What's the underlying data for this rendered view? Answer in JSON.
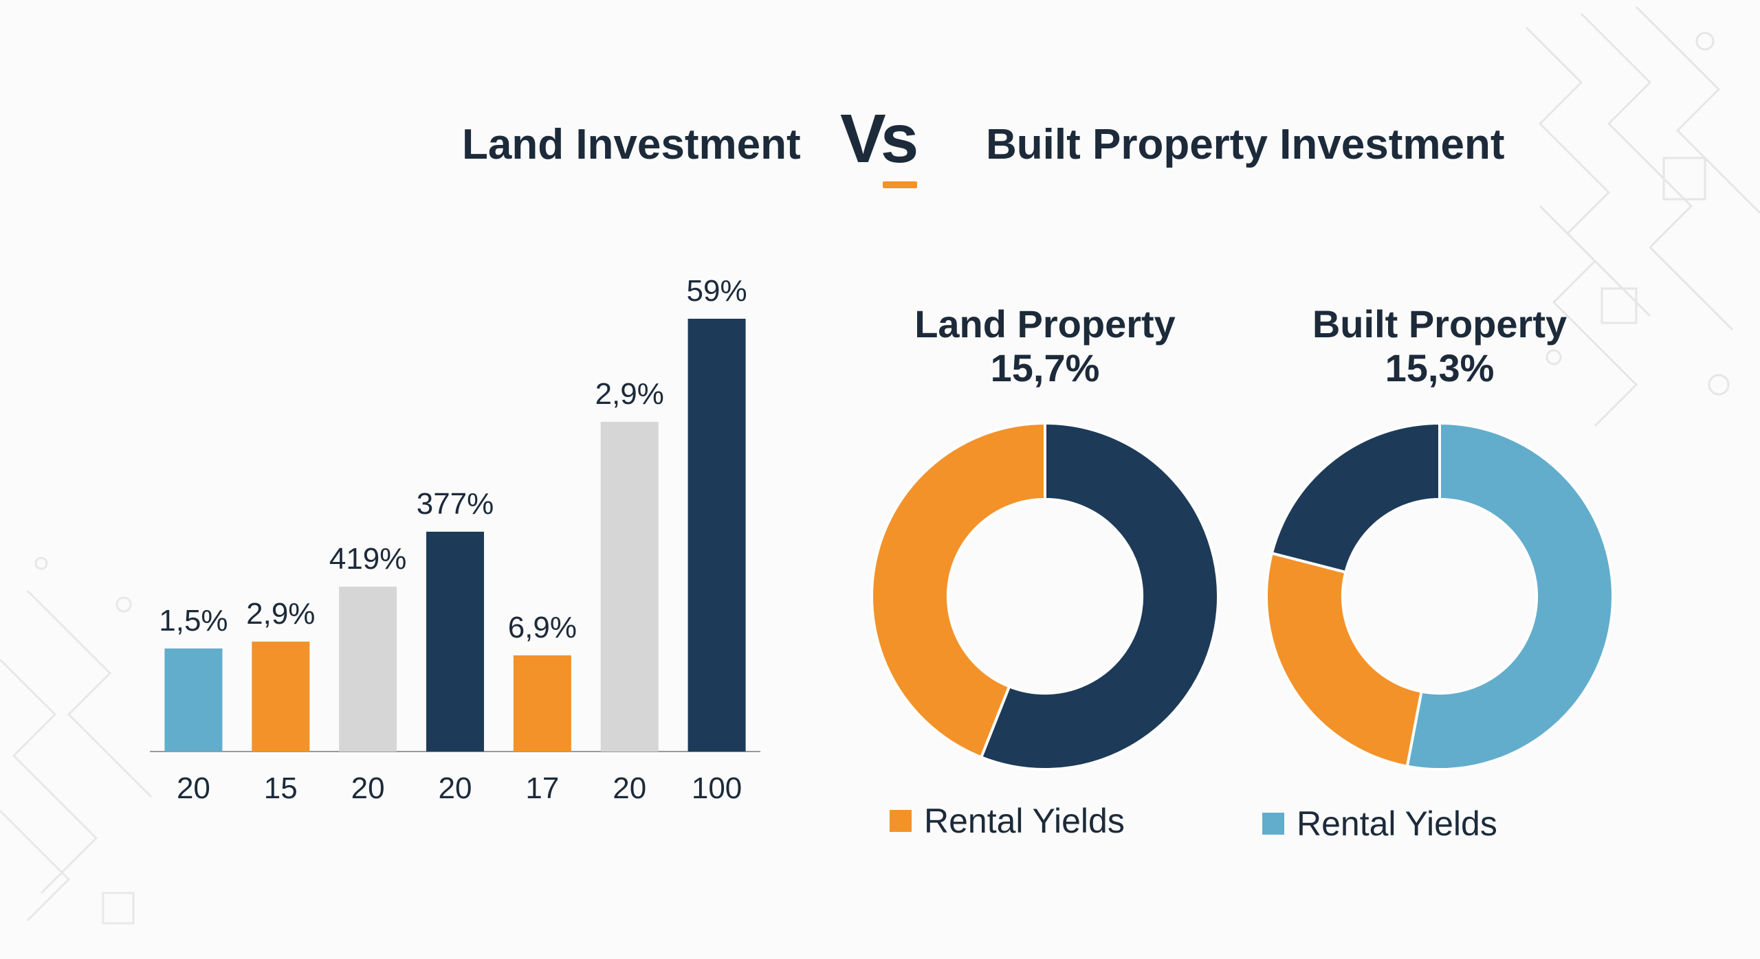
{
  "header": {
    "left_title": "Land Investment",
    "vs": "Vs",
    "right_title": "Built Property Investment"
  },
  "colors": {
    "navy": "#1d3b58",
    "orange": "#f39229",
    "light_blue": "#62adcc",
    "light_gray": "#d6d6d6"
  },
  "chart_data": [
    {
      "type": "bar",
      "title": "",
      "categories": [
        "20",
        "15",
        "20",
        "20",
        "17",
        "20",
        "100"
      ],
      "values": [
        15,
        16,
        24,
        32,
        14,
        48,
        63
      ],
      "data_labels": [
        "1,5%",
        "2,9%",
        "419%",
        "377%",
        "6,9%",
        "2,9%",
        "59%"
      ],
      "bar_colors": [
        "#62adcc",
        "#f39229",
        "#d6d6d6",
        "#1d3b58",
        "#f39229",
        "#d6d6d6",
        "#1d3b58"
      ],
      "ylim": [
        0,
        70
      ],
      "xlabel": "",
      "ylabel": "",
      "grid": false
    },
    {
      "type": "pie",
      "donut": true,
      "title": "Land Property",
      "subtitle": "15,7%",
      "slices": [
        {
          "value": 56,
          "color": "#1d3b58"
        },
        {
          "value": 44,
          "color": "#f39229"
        }
      ],
      "legend": [
        {
          "label": "Rental Yields",
          "color": "#f39229"
        }
      ]
    },
    {
      "type": "pie",
      "donut": true,
      "title": "Built Property",
      "subtitle": "15,3%",
      "slices": [
        {
          "value": 53,
          "color": "#62adcc"
        },
        {
          "value": 26,
          "color": "#f39229"
        },
        {
          "value": 21,
          "color": "#1d3b58"
        }
      ],
      "legend": [
        {
          "label": "Rental Yields",
          "color": "#62adcc"
        }
      ]
    }
  ]
}
